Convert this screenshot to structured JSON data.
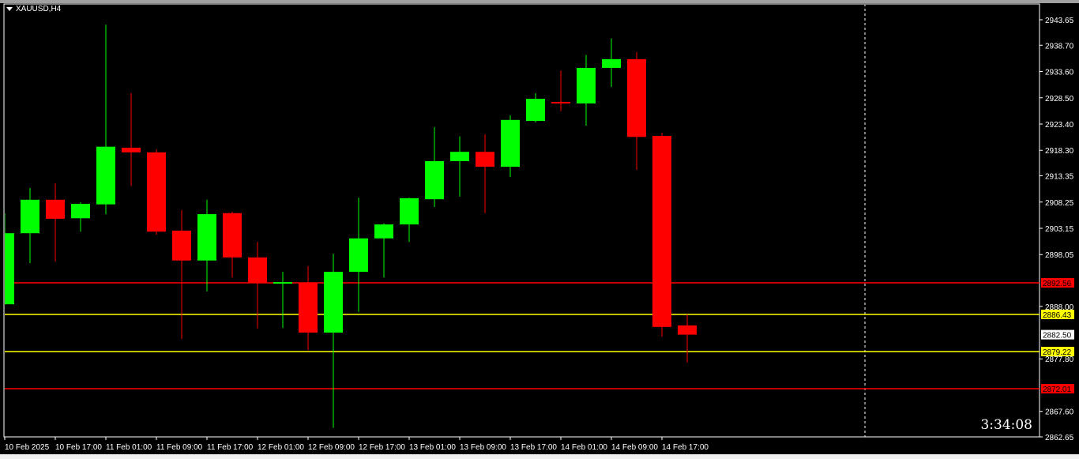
{
  "window": {
    "title": "XAUUSD,H4",
    "timer": "3:34:08"
  },
  "colors": {
    "background": "#000000",
    "bull": "#00ff00",
    "bear": "#ff0000",
    "axis": "#ffffff",
    "level_red": "#ff0000",
    "level_yellow": "#ffff00",
    "current_price_label": "#ffffff"
  },
  "chart_data": {
    "type": "candlestick",
    "symbol": "XAUUSD",
    "timeframe": "H4",
    "ylim": [
      2862.65,
      2943.65
    ],
    "y_ticks": [
      "2943.65",
      "2938.70",
      "2933.60",
      "2928.50",
      "2923.40",
      "2918.30",
      "2913.35",
      "2908.25",
      "2903.15",
      "2898.05",
      "2888.00",
      "2877.80",
      "2867.60",
      "2862.65"
    ],
    "x_ticks": [
      "10 Feb 2025",
      "10 Feb 17:00",
      "11 Feb 01:00",
      "11 Feb 09:00",
      "11 Feb 17:00",
      "12 Feb 01:00",
      "12 Feb 09:00",
      "12 Feb 17:00",
      "13 Feb 01:00",
      "13 Feb 09:00",
      "13 Feb 17:00",
      "14 Feb 01:00",
      "14 Feb 09:00",
      "14 Feb 17:00"
    ],
    "grid": false,
    "candles": [
      {
        "o": 2888.4,
        "h": 2906.1,
        "l": 2888.4,
        "c": 2902.2
      },
      {
        "o": 2902.2,
        "h": 2911.0,
        "l": 2896.4,
        "c": 2908.7
      },
      {
        "o": 2908.7,
        "h": 2911.9,
        "l": 2896.7,
        "c": 2905.0
      },
      {
        "o": 2905.1,
        "h": 2908.2,
        "l": 2902.5,
        "c": 2907.9
      },
      {
        "o": 2907.8,
        "h": 2942.7,
        "l": 2905.9,
        "c": 2919.0
      },
      {
        "o": 2918.8,
        "h": 2929.4,
        "l": 2911.4,
        "c": 2917.9
      },
      {
        "o": 2917.9,
        "h": 2918.5,
        "l": 2901.9,
        "c": 2902.5
      },
      {
        "o": 2902.7,
        "h": 2906.7,
        "l": 2881.7,
        "c": 2896.9
      },
      {
        "o": 2896.9,
        "h": 2908.7,
        "l": 2890.9,
        "c": 2905.9
      },
      {
        "o": 2906.1,
        "h": 2906.4,
        "l": 2893.6,
        "c": 2897.5
      },
      {
        "o": 2897.5,
        "h": 2900.5,
        "l": 2883.7,
        "c": 2892.6
      },
      {
        "o": 2892.4,
        "h": 2894.7,
        "l": 2883.8,
        "c": 2892.7
      },
      {
        "o": 2892.6,
        "h": 2895.8,
        "l": 2879.5,
        "c": 2882.9
      },
      {
        "o": 2882.9,
        "h": 2898.2,
        "l": 2864.4,
        "c": 2894.7
      },
      {
        "o": 2894.7,
        "h": 2909.1,
        "l": 2886.9,
        "c": 2901.2
      },
      {
        "o": 2901.2,
        "h": 2904.1,
        "l": 2893.6,
        "c": 2903.9
      },
      {
        "o": 2903.9,
        "h": 2909.1,
        "l": 2900.5,
        "c": 2909.0
      },
      {
        "o": 2908.8,
        "h": 2922.8,
        "l": 2907.3,
        "c": 2916.2
      },
      {
        "o": 2916.2,
        "h": 2921.0,
        "l": 2909.3,
        "c": 2918.0
      },
      {
        "o": 2918.0,
        "h": 2921.4,
        "l": 2906.1,
        "c": 2915.1
      },
      {
        "o": 2915.1,
        "h": 2925.1,
        "l": 2913.1,
        "c": 2924.2
      },
      {
        "o": 2924.0,
        "h": 2929.4,
        "l": 2923.7,
        "c": 2928.3
      },
      {
        "o": 2927.7,
        "h": 2933.8,
        "l": 2925.9,
        "c": 2927.4
      },
      {
        "o": 2927.4,
        "h": 2936.8,
        "l": 2923.1,
        "c": 2934.3
      },
      {
        "o": 2934.3,
        "h": 2940.0,
        "l": 2930.6,
        "c": 2936.0
      },
      {
        "o": 2936.0,
        "h": 2937.4,
        "l": 2914.5,
        "c": 2920.9
      },
      {
        "o": 2921.1,
        "h": 2921.7,
        "l": 2882.1,
        "c": 2884.0
      },
      {
        "o": 2884.3,
        "h": 2886.4,
        "l": 2877.1,
        "c": 2882.5
      }
    ],
    "levels": [
      {
        "price": 2892.56,
        "label": "2892.56",
        "color": "#ff0000"
      },
      {
        "price": 2886.43,
        "label": "2886.43",
        "color": "#ffff00"
      },
      {
        "price": 2879.22,
        "label": "2879.22",
        "color": "#ffff00"
      },
      {
        "price": 2872.01,
        "label": "2872.01",
        "color": "#ff0000"
      }
    ],
    "current_price": {
      "price": 2882.5,
      "label": "2882.50"
    },
    "vertical_marker": {
      "time": "14 Feb 23:00",
      "style": "dashed"
    }
  }
}
